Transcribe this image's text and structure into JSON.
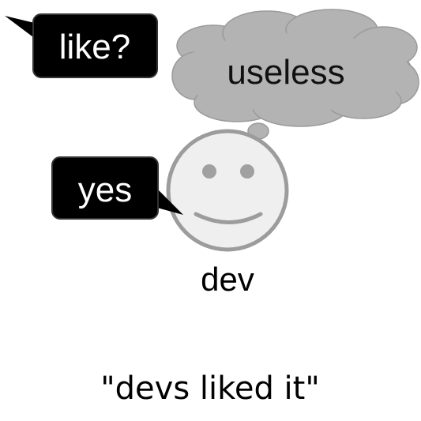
{
  "speech_bubbles": {
    "question": "like?",
    "answer": "yes"
  },
  "thought_bubble": {
    "text": "useless"
  },
  "character": {
    "name": "dev",
    "icon": "smiley-face-icon"
  },
  "caption": "\"devs liked it\"",
  "colors": {
    "bubble_fill": "#000000",
    "bubble_text": "#ffffff",
    "cloud_fill": "#b3b3b3",
    "face_fill": "#efefef",
    "face_stroke": "#9c9c9c"
  }
}
